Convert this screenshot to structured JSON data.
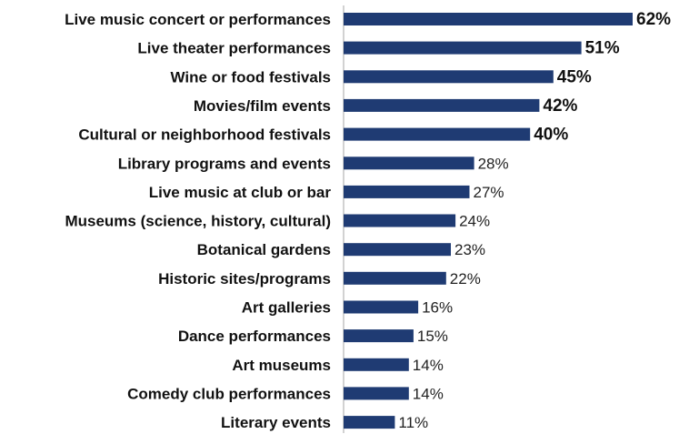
{
  "chart_data": {
    "type": "bar",
    "orientation": "horizontal",
    "categories": [
      "Live music concert or performances",
      "Live theater performances",
      "Wine or food festivals",
      "Movies/film events",
      "Cultural or neighborhood festivals",
      "Library programs and events",
      "Live music at club or bar",
      "Museums (science, history, cultural)",
      "Botanical gardens",
      "Historic sites/programs",
      "Art galleries",
      "Dance performances",
      "Art museums",
      "Comedy club performances",
      "Literary events"
    ],
    "values": [
      62,
      51,
      45,
      42,
      40,
      28,
      27,
      24,
      23,
      22,
      16,
      15,
      14,
      14,
      11
    ],
    "value_labels": [
      "62%",
      "51%",
      "45%",
      "42%",
      "40%",
      "28%",
      "27%",
      "24%",
      "23%",
      "22%",
      "16%",
      "15%",
      "14%",
      "14%",
      "11%"
    ],
    "bold_top_n": 5,
    "bar_color": "#1f3b73",
    "title": "",
    "xlabel": "",
    "ylabel": "",
    "xlim": [
      0,
      62
    ],
    "grid": false,
    "legend": "none"
  }
}
